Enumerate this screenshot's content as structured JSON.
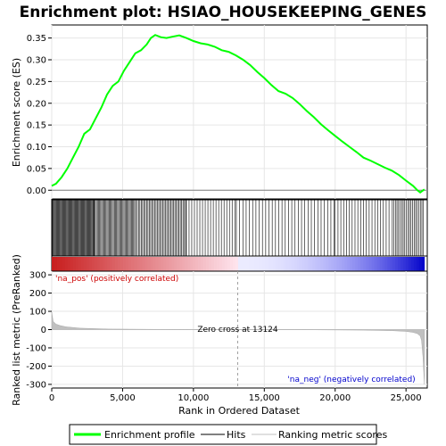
{
  "chart_data": {
    "type": "line",
    "title": "Enrichment plot: HSIAO_HOUSEKEEPING_GENES",
    "xlabel": "Rank in Ordered Dataset",
    "ylabel_es": "Enrichment score (ES)",
    "ylabel_metric": "Ranked list metric (PreRanked)",
    "xlim": [
      0,
      26500
    ],
    "es_ylim": [
      -0.02,
      0.38
    ],
    "metric_ylim": [
      -320,
      320
    ],
    "x_ticks": [
      0,
      5000,
      10000,
      15000,
      20000,
      25000
    ],
    "x_tick_labels": [
      "0",
      "5,000",
      "10,000",
      "15,000",
      "20,000",
      "25,000"
    ],
    "es_ticks": [
      0.0,
      0.05,
      0.1,
      0.15,
      0.2,
      0.25,
      0.3,
      0.35
    ],
    "es_tick_labels": [
      "0.00",
      "0.05",
      "0.10",
      "0.15",
      "0.20",
      "0.25",
      "0.30",
      "0.35"
    ],
    "metric_ticks": [
      -300,
      -200,
      -100,
      0,
      100,
      200,
      300
    ],
    "metric_tick_labels": [
      "-300",
      "-200",
      "-100",
      "0",
      "100",
      "200",
      "300"
    ],
    "series": [
      {
        "name": "Enrichment profile",
        "color": "#00ff00",
        "x": [
          0,
          300,
          700,
          1100,
          1500,
          1900,
          2300,
          2700,
          3100,
          3500,
          3900,
          4300,
          4700,
          5100,
          5500,
          5900,
          6300,
          6700,
          7000,
          7300,
          7700,
          8100,
          8500,
          9000,
          9500,
          10000,
          10500,
          11000,
          11500,
          12000,
          12500,
          13000,
          13500,
          14000,
          14500,
          15000,
          15500,
          16000,
          16500,
          17000,
          17500,
          18000,
          18500,
          19000,
          19500,
          20000,
          20500,
          21000,
          21500,
          22000,
          22500,
          23000,
          23500,
          24000,
          24500,
          25000,
          25500,
          25800,
          26000,
          26300
        ],
        "y": [
          0.01,
          0.015,
          0.03,
          0.05,
          0.075,
          0.1,
          0.13,
          0.14,
          0.165,
          0.19,
          0.22,
          0.24,
          0.25,
          0.275,
          0.295,
          0.315,
          0.322,
          0.335,
          0.35,
          0.357,
          0.352,
          0.35,
          0.353,
          0.356,
          0.35,
          0.343,
          0.338,
          0.335,
          0.33,
          0.322,
          0.318,
          0.31,
          0.3,
          0.288,
          0.272,
          0.258,
          0.242,
          0.228,
          0.222,
          0.212,
          0.198,
          0.182,
          0.168,
          0.152,
          0.138,
          0.125,
          0.112,
          0.1,
          0.088,
          0.075,
          0.068,
          0.06,
          0.052,
          0.045,
          0.035,
          0.022,
          0.01,
          0.0,
          -0.005,
          0.002
        ]
      }
    ],
    "hits_legend": "Hits",
    "metric_legend": "Ranking metric scores",
    "metric_profile": {
      "x": [
        0,
        100,
        300,
        600,
        1000,
        2000,
        4000,
        8000,
        13124,
        18000,
        22000,
        24000,
        25000,
        25500,
        25800,
        26000,
        26100,
        26200,
        26300
      ],
      "y": [
        95,
        45,
        30,
        22,
        15,
        8,
        3,
        1,
        0,
        -1,
        -3,
        -6,
        -10,
        -15,
        -22,
        -35,
        -60,
        -150,
        -300
      ]
    },
    "hits_density": [
      {
        "from": 0,
        "to": 3000,
        "step": 55
      },
      {
        "from": 3000,
        "to": 6000,
        "step": 75
      },
      {
        "from": 6000,
        "to": 9500,
        "step": 95
      },
      {
        "from": 9500,
        "to": 13000,
        "step": 190
      },
      {
        "from": 13000,
        "to": 20000,
        "step": 230
      },
      {
        "from": 20000,
        "to": 24000,
        "step": 200
      },
      {
        "from": 24000,
        "to": 26300,
        "step": 110
      }
    ],
    "zero_cross": 13124,
    "annotations": {
      "pos": "'na_pos' (positively correlated)",
      "neg": "'na_neg' (negatively correlated)",
      "zero": "Zero cross at 13124"
    },
    "colors": {
      "pos": "#cc0000",
      "neg": "#0000ff",
      "hits": "#000000",
      "metric": "#c0c0c0"
    }
  }
}
